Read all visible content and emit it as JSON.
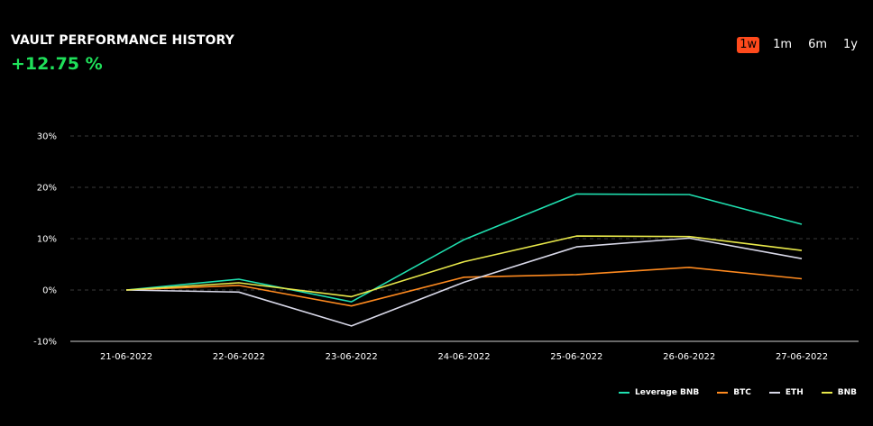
{
  "header": {
    "title": "VAULT PERFORMANCE HISTORY",
    "performance": "+12.75 %"
  },
  "ranges": [
    {
      "label": "1w",
      "active": true
    },
    {
      "label": "1m",
      "active": false
    },
    {
      "label": "6m",
      "active": false
    },
    {
      "label": "1y",
      "active": false
    }
  ],
  "colors": {
    "accent": "#ff4a1c",
    "positive": "#1fe05a"
  },
  "chart_data": {
    "type": "line",
    "categories": [
      "21-06-2022",
      "22-06-2022",
      "23-06-2022",
      "24-06-2022",
      "25-06-2022",
      "26-06-2022",
      "27-06-2022"
    ],
    "yticks": [
      -10,
      0,
      10,
      20,
      30
    ],
    "ytick_labels": [
      "-10%",
      "0%",
      "10%",
      "20%",
      "30%"
    ],
    "ylim": [
      -10,
      30
    ],
    "grid": true,
    "legend_position": "bottom-right",
    "series": [
      {
        "name": "Leverage BNB",
        "color": "#1fe0b0",
        "values": [
          0,
          2.1,
          -2.3,
          9.8,
          18.7,
          18.6,
          12.8
        ]
      },
      {
        "name": "BTC",
        "color": "#ff8a1f",
        "values": [
          0,
          0.9,
          -3.1,
          2.5,
          3.0,
          4.4,
          2.2
        ]
      },
      {
        "name": "ETH",
        "color": "#d8d8e8",
        "values": [
          0,
          -0.4,
          -7.0,
          1.5,
          8.4,
          10.1,
          6.1
        ]
      },
      {
        "name": "BNB",
        "color": "#e8e84a",
        "values": [
          0,
          1.4,
          -1.3,
          5.5,
          10.5,
          10.4,
          7.7
        ]
      }
    ]
  }
}
